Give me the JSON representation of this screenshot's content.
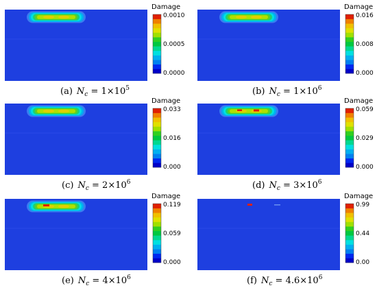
{
  "colorbar_title": "Damage",
  "palette": [
    "#0000c8",
    "#0028f0",
    "#0080f0",
    "#00b0f0",
    "#00e0e0",
    "#00d890",
    "#00c840",
    "#30d020",
    "#a0e000",
    "#e0e000",
    "#f0c000",
    "#f08000",
    "#e02000"
  ],
  "field_background": "#1e3fe0",
  "panels": [
    {
      "label": "(a)",
      "n_mantissa": "1",
      "n_exponent": "5",
      "ticks": [
        "0.0010",
        "0.0005",
        "0.0000"
      ],
      "state": "diffuse-band"
    },
    {
      "label": "(b)",
      "n_mantissa": "1",
      "n_exponent": "6",
      "ticks": [
        "0.016",
        "0.008",
        "0.000"
      ],
      "state": "diffuse-band"
    },
    {
      "label": "(c)",
      "n_mantissa": "2",
      "n_exponent": "6",
      "ticks": [
        "0.033",
        "0.016",
        "0.000"
      ],
      "state": "diffuse-band"
    },
    {
      "label": "(d)",
      "n_mantissa": "3",
      "n_exponent": "6",
      "ticks": [
        "0.059",
        "0.029",
        "0.000"
      ],
      "state": "band-with-peaks"
    },
    {
      "label": "(e)",
      "n_mantissa": "4",
      "n_exponent": "6",
      "ticks": [
        "0.119",
        "0.059",
        "0.000"
      ],
      "state": "band-with-left-peak"
    },
    {
      "label": "(f)",
      "n_mantissa": "4.6",
      "n_exponent": "6",
      "ticks": [
        "0.99",
        "0.44",
        "0.00"
      ],
      "state": "localized-failure"
    }
  ],
  "caption_parts": {
    "variable": "N",
    "subscript": "c",
    "equals": " = ",
    "times": "×10"
  }
}
